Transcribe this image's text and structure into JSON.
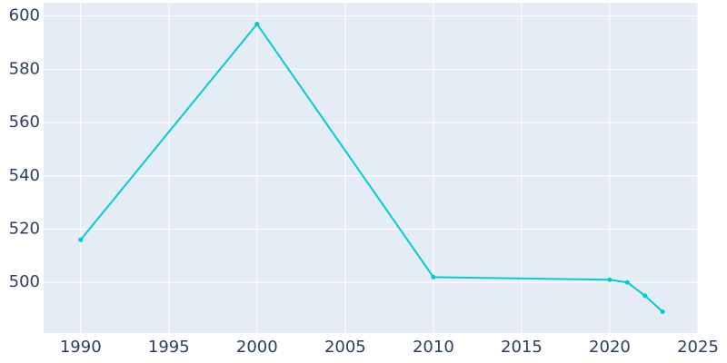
{
  "chart_data": {
    "type": "line",
    "x": [
      1990,
      2000,
      2010,
      2020,
      2021,
      2022,
      2023
    ],
    "series": [
      {
        "color": "#00cdd0",
        "values": [
          516,
          597,
          502,
          501,
          500,
          495,
          489
        ]
      }
    ],
    "xlim": [
      1987.9,
      2025
    ],
    "xticks": [
      1990,
      1995,
      2000,
      2005,
      2010,
      2015,
      2020,
      2025
    ],
    "ylim": [
      481,
      605
    ],
    "yticks": [
      500,
      520,
      540,
      560,
      580,
      600
    ],
    "grid": true,
    "markers": true
  }
}
